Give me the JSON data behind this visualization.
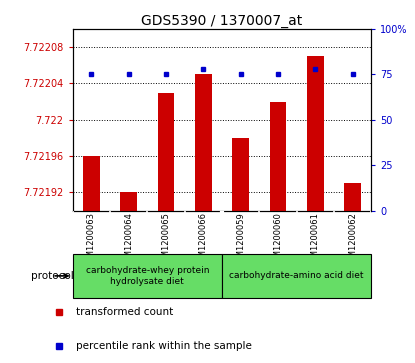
{
  "title": "GDS5390 / 1370007_at",
  "samples": [
    "GSM1200063",
    "GSM1200064",
    "GSM1200065",
    "GSM1200066",
    "GSM1200059",
    "GSM1200060",
    "GSM1200061",
    "GSM1200062"
  ],
  "red_values": [
    7.72196,
    7.72192,
    7.72203,
    7.72205,
    7.72198,
    7.72202,
    7.72207,
    7.72193
  ],
  "blue_values": [
    75,
    75,
    75,
    78,
    75,
    75,
    78,
    75
  ],
  "ylim_red": [
    7.7219,
    7.7221
  ],
  "yticks_red": [
    7.72192,
    7.72196,
    7.722,
    7.72204,
    7.72208
  ],
  "ytick_labels_red": [
    "7.72192",
    "7.72196",
    "7.722",
    "7.72204",
    "7.72208"
  ],
  "ylim_blue": [
    0,
    100
  ],
  "yticks_blue": [
    0,
    25,
    50,
    75,
    100
  ],
  "ytick_labels_blue": [
    "0",
    "25",
    "50",
    "75",
    "100%"
  ],
  "bar_color": "#cc0000",
  "dot_color": "#0000cc",
  "protocol_groups": [
    {
      "label": "carbohydrate-whey protein\nhydrolysate diet",
      "indices": [
        0,
        1,
        2,
        3
      ],
      "color": "#66dd66"
    },
    {
      "label": "carbohydrate-amino acid diet",
      "indices": [
        4,
        5,
        6,
        7
      ],
      "color": "#66dd66"
    }
  ],
  "protocol_label": "protocol",
  "legend_items": [
    {
      "label": "transformed count",
      "color": "#cc0000"
    },
    {
      "label": "percentile rank within the sample",
      "color": "#0000cc"
    }
  ],
  "background_color": "#ffffff",
  "plot_bg_color": "#ffffff",
  "tick_label_area_color": "#cccccc",
  "grid_color": "#000000",
  "group1_color": "#aaddaa",
  "group2_color": "#55ee55"
}
